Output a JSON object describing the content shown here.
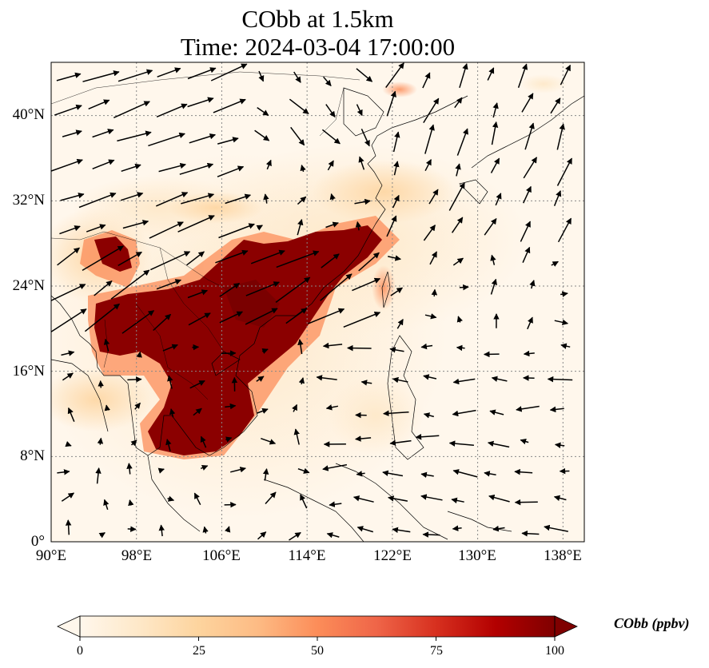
{
  "title_line1": "CObb at 1.5km",
  "title_line2": "Time: 2024-03-04 17:00:00",
  "map": {
    "lon_range": [
      90,
      140
    ],
    "lat_range": [
      0,
      45
    ],
    "lon_ticks": [
      {
        "value": 90,
        "label": "90°E"
      },
      {
        "value": 98,
        "label": "98°E"
      },
      {
        "value": 106,
        "label": "106°E"
      },
      {
        "value": 114,
        "label": "114°E"
      },
      {
        "value": 122,
        "label": "122°E"
      },
      {
        "value": 130,
        "label": "130°E"
      },
      {
        "value": 138,
        "label": "138°E"
      }
    ],
    "lat_ticks": [
      {
        "value": 0,
        "label": "0°"
      },
      {
        "value": 8,
        "label": "8°N"
      },
      {
        "value": 16,
        "label": "16°N"
      },
      {
        "value": 24,
        "label": "24°N"
      },
      {
        "value": 32,
        "label": "32°N"
      },
      {
        "value": 40,
        "label": "40°N"
      }
    ],
    "gridlines": true
  },
  "colorbar": {
    "label": "CObb (ppbv)",
    "colormap": "OrRd",
    "min": 0,
    "max": 100,
    "extend": "both",
    "ticks": [
      "0",
      "25",
      "50",
      "75",
      "100"
    ],
    "colors": [
      "#fff7ec",
      "#fee8c8",
      "#fdd49e",
      "#fdbb84",
      "#fc8d59",
      "#ef6548",
      "#d7301f",
      "#b30000",
      "#7f0000"
    ]
  }
}
